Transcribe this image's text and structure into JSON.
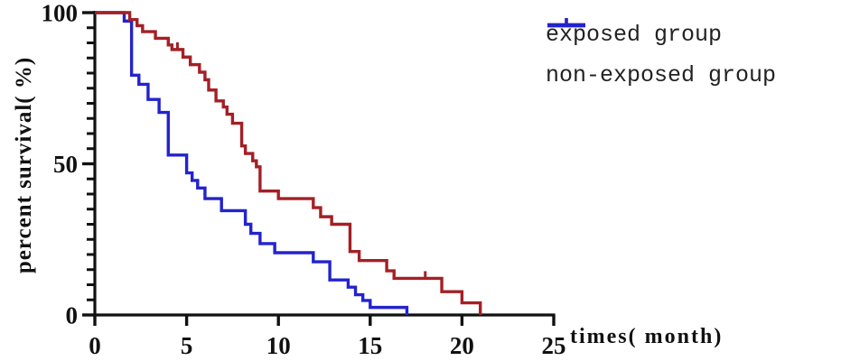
{
  "figure": {
    "kind": "kaplan-meier-survival-plot",
    "background": "#ffffff",
    "axis_color": "#111111"
  },
  "y_axis": {
    "label": "percent survival( %)",
    "ticks": [
      0,
      50,
      100
    ],
    "minor_tick_step": 5,
    "range": [
      0,
      100
    ]
  },
  "x_axis": {
    "label": "times( month)",
    "ticks": [
      0,
      5,
      10,
      15,
      20,
      25
    ],
    "range": [
      0,
      25
    ]
  },
  "legend": [
    {
      "label": "exposed group",
      "color": "#a32026"
    },
    {
      "label": "non-exposed group",
      "color": "#2323cd"
    }
  ],
  "chart_data": {
    "type": "line",
    "subtype": "step-survival",
    "title": "",
    "xlabel": "times( month)",
    "ylabel": "percent survival( %)",
    "xlim": [
      0,
      25
    ],
    "ylim": [
      0,
      100
    ],
    "grid": false,
    "legend_position": "top-right",
    "series": [
      {
        "name": "exposed group",
        "color": "#a32026",
        "steps": [
          [
            0,
            100
          ],
          [
            1.9,
            97.7
          ],
          [
            2.3,
            95.7
          ],
          [
            2.6,
            93.7
          ],
          [
            3.3,
            91.5
          ],
          [
            4.0,
            89.3
          ],
          [
            4.2,
            87.8
          ],
          [
            4.8,
            85.3
          ],
          [
            5.2,
            82.8
          ],
          [
            5.7,
            80.3
          ],
          [
            6.0,
            77.8
          ],
          [
            6.2,
            74.4
          ],
          [
            6.6,
            70.8
          ],
          [
            7.0,
            68.8
          ],
          [
            7.2,
            66.4
          ],
          [
            7.5,
            63.4
          ],
          [
            8.0,
            55.9
          ],
          [
            8.2,
            53.4
          ],
          [
            8.6,
            51.0
          ],
          [
            8.8,
            49.0
          ],
          [
            9.0,
            41.0
          ],
          [
            10.0,
            38.5
          ],
          [
            11.9,
            35.5
          ],
          [
            12.3,
            32.5
          ],
          [
            12.9,
            30.0
          ],
          [
            13.9,
            21.0
          ],
          [
            14.4,
            18.0
          ],
          [
            15.9,
            14.6
          ],
          [
            16.3,
            12.1
          ],
          [
            18.9,
            7.7
          ],
          [
            20.0,
            4.0
          ],
          [
            21.0,
            0
          ]
        ],
        "censor_times": [
          4.5,
          18.0
        ]
      },
      {
        "name": "non-exposed group",
        "color": "#2323cd",
        "steps": [
          [
            0,
            100
          ],
          [
            1.6,
            97.2
          ],
          [
            2.0,
            79.3
          ],
          [
            2.4,
            76.3
          ],
          [
            2.9,
            71.3
          ],
          [
            3.5,
            67.0
          ],
          [
            4.0,
            52.9
          ],
          [
            5.0,
            47.0
          ],
          [
            5.3,
            44.5
          ],
          [
            5.6,
            42.0
          ],
          [
            6.0,
            38.5
          ],
          [
            6.9,
            34.5
          ],
          [
            8.2,
            30.0
          ],
          [
            8.5,
            27.0
          ],
          [
            9.0,
            23.6
          ],
          [
            9.8,
            20.6
          ],
          [
            11.9,
            17.6
          ],
          [
            12.8,
            11.6
          ],
          [
            13.8,
            9.2
          ],
          [
            14.2,
            6.7
          ],
          [
            14.6,
            4.8
          ],
          [
            15.0,
            2.5
          ],
          [
            17.0,
            0
          ]
        ],
        "censor_times": []
      }
    ]
  }
}
